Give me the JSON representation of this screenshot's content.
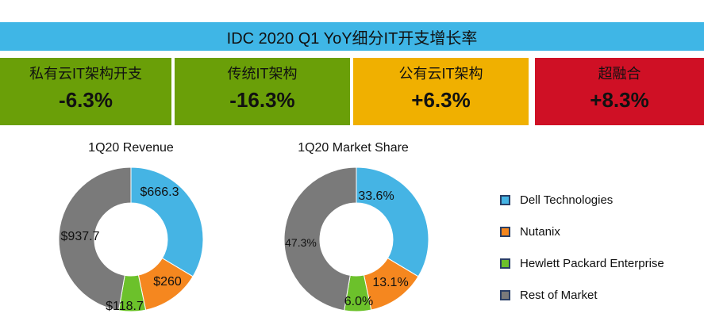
{
  "header": {
    "title": "IDC 2020 Q1 YoY细分IT开支增长率"
  },
  "stats": [
    {
      "label": "私有云IT架构开支",
      "value": "-6.3%",
      "color": "#6a9f08"
    },
    {
      "label": "传统IT架构",
      "value": "-16.3%",
      "color": "#6a9f08"
    },
    {
      "label": "公有云IT架构",
      "value": "+6.3%",
      "color": "#f0b000"
    },
    {
      "label": "超融合",
      "value": "+8.3%",
      "color": "#cf1025"
    }
  ],
  "colors": {
    "dell": "#45b4e4",
    "nutanix": "#f5871f",
    "hpe": "#6cc12b",
    "rest": "#7a7a7a"
  },
  "chart_data": [
    {
      "type": "pie",
      "title": "1Q20 Revenue",
      "categories": [
        "Dell Technologies",
        "Nutanix",
        "Hewlett Packard Enterprise",
        "Rest of Market"
      ],
      "values": [
        666.3,
        260,
        118.7,
        937.7
      ],
      "labels": [
        "$666.3",
        "$260",
        "$118.7",
        "$937.7"
      ]
    },
    {
      "type": "pie",
      "title": "1Q20 Market Share",
      "categories": [
        "Dell Technologies",
        "Nutanix",
        "Hewlett Packard Enterprise",
        "Rest of Market"
      ],
      "values": [
        33.6,
        13.1,
        6.0,
        47.3
      ],
      "labels": [
        "33.6%",
        "13.1%",
        "6.0%",
        "47.3%"
      ]
    }
  ],
  "legend": [
    {
      "label": "Dell Technologies",
      "color": "#45b4e4"
    },
    {
      "label": "Nutanix",
      "color": "#f5871f"
    },
    {
      "label": "Hewlett Packard Enterprise",
      "color": "#6cc12b"
    },
    {
      "label": "Rest of Market",
      "color": "#7a7a7a"
    }
  ]
}
